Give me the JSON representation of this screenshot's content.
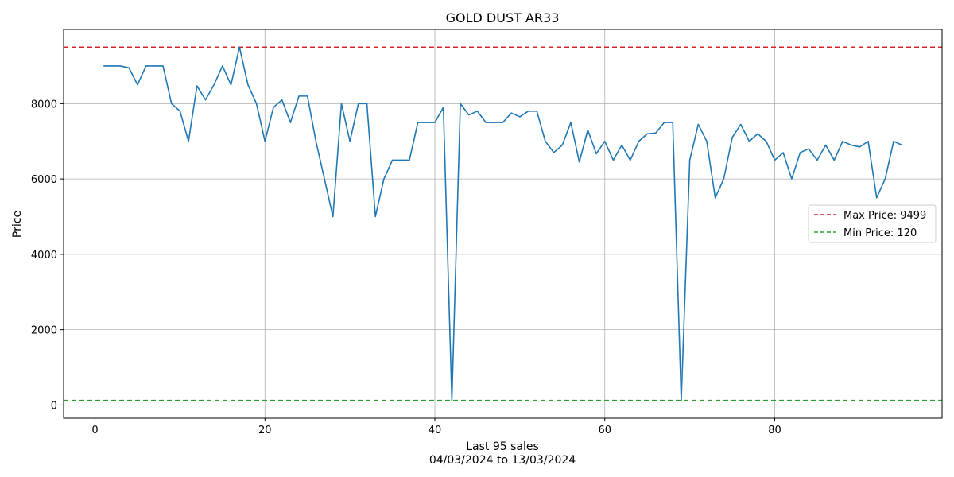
{
  "chart_data": {
    "type": "line",
    "title": "GOLD DUST AR33",
    "xlabel_line1": "Last 95 sales",
    "xlabel_line2": "04/03/2024 to 13/03/2024",
    "ylabel": "Price",
    "xlim": [
      -3.7,
      99.7
    ],
    "ylim": [
      -350,
      9970
    ],
    "xticks": [
      0,
      20,
      40,
      60,
      80
    ],
    "yticks": [
      0,
      2000,
      4000,
      6000,
      8000
    ],
    "grid": true,
    "legend_placement": "center-right",
    "series": [
      {
        "color": "#1f77b4",
        "x": [
          1,
          2,
          3,
          4,
          5,
          6,
          7,
          8,
          9,
          10,
          11,
          12,
          13,
          14,
          15,
          16,
          17,
          18,
          19,
          20,
          21,
          22,
          23,
          24,
          25,
          26,
          27,
          28,
          29,
          30,
          31,
          32,
          33,
          34,
          35,
          36,
          37,
          38,
          39,
          40,
          41,
          42,
          43,
          44,
          45,
          46,
          47,
          48,
          49,
          50,
          51,
          52,
          53,
          54,
          55,
          56,
          57,
          58,
          59,
          60,
          61,
          62,
          63,
          64,
          65,
          66,
          67,
          68,
          69,
          70,
          71,
          72,
          73,
          74,
          75,
          76,
          77,
          78,
          79,
          80,
          81,
          82,
          83,
          84,
          85,
          86,
          87,
          88,
          89,
          90,
          91,
          92,
          93,
          94,
          95
        ],
        "values": [
          9000,
          9000,
          9000,
          8950,
          8500,
          9000,
          9000,
          9000,
          8000,
          7800,
          7000,
          8470,
          8100,
          8500,
          9000,
          8500,
          9499,
          8500,
          8000,
          7000,
          7900,
          8100,
          7500,
          8200,
          8200,
          7000,
          6000,
          5000,
          8000,
          7000,
          8000,
          8000,
          5000,
          6000,
          6500,
          6500,
          6500,
          7500,
          7500,
          7500,
          7900,
          120,
          8000,
          7700,
          7800,
          7500,
          7500,
          7500,
          7750,
          7650,
          7800,
          7800,
          7000,
          6700,
          6900,
          7500,
          6450,
          7300,
          6670,
          7000,
          6500,
          6900,
          6500,
          7000,
          7200,
          7220,
          7500,
          7500,
          120,
          6500,
          7450,
          7000,
          5500,
          6000,
          7100,
          7450,
          7000,
          7200,
          7000,
          6500,
          6700,
          6000,
          6700,
          6800,
          6500,
          6900,
          6500,
          7000,
          6900,
          6850,
          7000,
          5500,
          6000,
          7000,
          6900
        ]
      }
    ],
    "reference_lines": [
      {
        "label": "Max Price: 9499",
        "value": 9499,
        "color": "#d62728"
      },
      {
        "label": "Min Price: 120",
        "value": 120,
        "color": "#2ca02c"
      }
    ]
  }
}
